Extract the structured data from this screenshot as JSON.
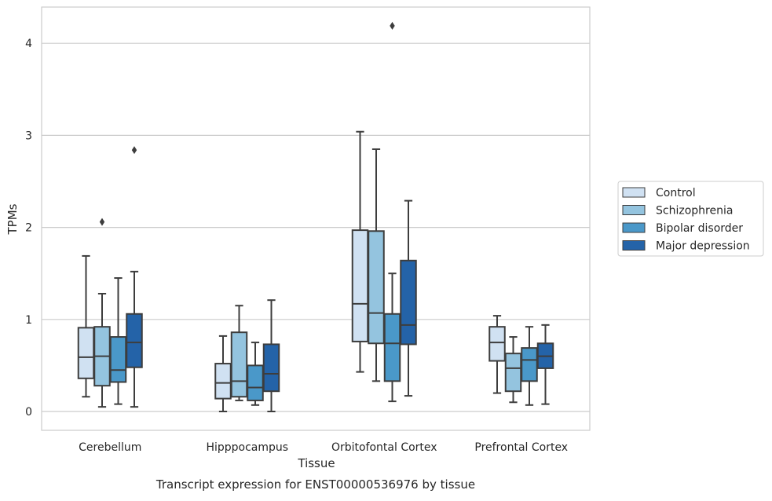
{
  "chart_data": {
    "type": "box",
    "caption": "Transcript expression for ENST00000536976 by tissue",
    "xlabel": "Tissue",
    "ylabel": "TPMs",
    "ylim": [
      -0.2,
      4.4
    ],
    "yticks": [
      0,
      1,
      2,
      3,
      4
    ],
    "grid": "horizontal",
    "legend_position": "right",
    "categories": [
      "Cerebellum",
      "Hipppocampus",
      "Orbitofontal Cortex",
      "Prefrontal Cortex"
    ],
    "series": [
      {
        "name": "Control",
        "color": "#d0e1f2",
        "boxes": [
          {
            "whislo": 0.16,
            "q1": 0.36,
            "med": 0.59,
            "q3": 0.91,
            "whishi": 1.69,
            "fliers": []
          },
          {
            "whislo": 0.0,
            "q1": 0.14,
            "med": 0.31,
            "q3": 0.52,
            "whishi": 0.82,
            "fliers": []
          },
          {
            "whislo": 0.43,
            "q1": 0.76,
            "med": 1.17,
            "q3": 1.97,
            "whishi": 3.04,
            "fliers": []
          },
          {
            "whislo": 0.2,
            "q1": 0.55,
            "med": 0.75,
            "q3": 0.92,
            "whishi": 1.04,
            "fliers": []
          }
        ]
      },
      {
        "name": "Schizophrenia",
        "color": "#94c4df",
        "boxes": [
          {
            "whislo": 0.05,
            "q1": 0.28,
            "med": 0.6,
            "q3": 0.92,
            "whishi": 1.28,
            "fliers": [
              2.06
            ]
          },
          {
            "whislo": 0.12,
            "q1": 0.16,
            "med": 0.33,
            "q3": 0.86,
            "whishi": 1.15,
            "fliers": []
          },
          {
            "whislo": 0.33,
            "q1": 0.74,
            "med": 1.07,
            "q3": 1.96,
            "whishi": 2.85,
            "fliers": []
          },
          {
            "whislo": 0.1,
            "q1": 0.22,
            "med": 0.47,
            "q3": 0.63,
            "whishi": 0.81,
            "fliers": []
          }
        ]
      },
      {
        "name": "Bipolar disorder",
        "color": "#4a98c9",
        "boxes": [
          {
            "whislo": 0.08,
            "q1": 0.32,
            "med": 0.45,
            "q3": 0.81,
            "whishi": 1.45,
            "fliers": []
          },
          {
            "whislo": 0.07,
            "q1": 0.12,
            "med": 0.26,
            "q3": 0.5,
            "whishi": 0.75,
            "fliers": []
          },
          {
            "whislo": 0.11,
            "q1": 0.33,
            "med": 0.74,
            "q3": 1.06,
            "whishi": 1.5,
            "fliers": [
              4.19
            ]
          },
          {
            "whislo": 0.07,
            "q1": 0.33,
            "med": 0.56,
            "q3": 0.69,
            "whishi": 0.92,
            "fliers": []
          }
        ]
      },
      {
        "name": "Major depression",
        "color": "#2463a8",
        "boxes": [
          {
            "whislo": 0.05,
            "q1": 0.48,
            "med": 0.75,
            "q3": 1.06,
            "whishi": 1.52,
            "fliers": [
              2.84
            ]
          },
          {
            "whislo": 0.0,
            "q1": 0.22,
            "med": 0.41,
            "q3": 0.73,
            "whishi": 1.21,
            "fliers": []
          },
          {
            "whislo": 0.17,
            "q1": 0.73,
            "med": 0.94,
            "q3": 1.64,
            "whishi": 2.29,
            "fliers": []
          },
          {
            "whislo": 0.08,
            "q1": 0.47,
            "med": 0.6,
            "q3": 0.74,
            "whishi": 0.94,
            "fliers": []
          }
        ]
      }
    ]
  }
}
